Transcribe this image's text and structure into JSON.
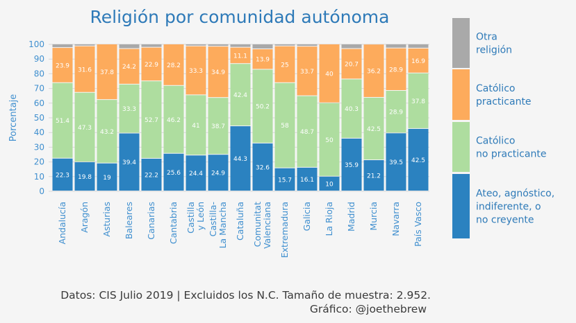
{
  "chart_data": {
    "type": "bar",
    "stacked": true,
    "title": "Religión por comunidad autónoma",
    "ylabel": "Porcentaje",
    "xlabel": "",
    "ylim": [
      0,
      100
    ],
    "yticks": [
      0,
      10,
      20,
      30,
      40,
      50,
      60,
      70,
      80,
      90,
      100
    ],
    "grid": true,
    "legend_position": "right",
    "categories": [
      "Andalucía",
      "Aragón",
      "Asturias",
      "Baleares",
      "Canarias",
      "Cantabria",
      "Castilla\ny León",
      "Castilla-\nLa Mancha",
      "Cataluña",
      "Comunitat\nValenciana",
      "Extremadura",
      "Galicia",
      "La Rioja",
      "Madrid",
      "Murcia",
      "Navarra",
      "País Vasco"
    ],
    "series": [
      {
        "name": "Ateo, agnóstico,\nindiferente, o\nno creyente",
        "color": "#2b82c0",
        "labelColor": "#ffffff",
        "values": [
          22.3,
          19.8,
          19,
          39.4,
          22.2,
          25.6,
          24.4,
          24.9,
          44.3,
          32.6,
          15.7,
          16.1,
          10,
          35.9,
          21.2,
          39.5,
          42.5
        ]
      },
      {
        "name": "Católico\nno practicante",
        "color": "#aedd9f",
        "labelColor": "#ffffff",
        "values": [
          51.4,
          47.3,
          43.2,
          33.3,
          52.7,
          46.2,
          41,
          38.7,
          42.4,
          50.2,
          58,
          48.7,
          50,
          40.3,
          42.5,
          28.9,
          37.8
        ]
      },
      {
        "name": "Católico\npracticante",
        "color": "#fdab5c",
        "labelColor": "#ffffff",
        "values": [
          23.9,
          31.6,
          37.8,
          24.2,
          22.9,
          28.2,
          33.3,
          34.9,
          11.1,
          13.9,
          25,
          33.7,
          40,
          20.7,
          36.2,
          28.9,
          16.9
        ]
      },
      {
        "name": "Otra\nreligión",
        "color": "#a9a9a9",
        "labelColor": "#ffffff",
        "values": [
          2.4,
          1.3,
          0,
          3.1,
          2.2,
          0,
          1.3,
          1.5,
          2.2,
          3.3,
          1.3,
          1.5,
          0,
          3.1,
          0.1,
          2.7,
          2.8
        ]
      }
    ]
  },
  "footer": {
    "line1": "Datos: CIS Julio 2019 | Excluidos los N.C. Tamaño de muestra: 2.952.",
    "line2": "Gráfico: @joethebrew"
  }
}
